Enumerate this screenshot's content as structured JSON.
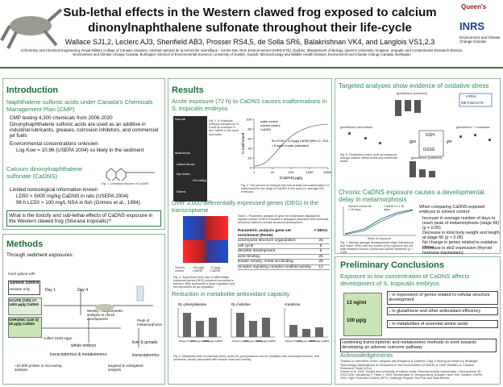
{
  "header": {
    "title_line1": "Sub-lethal effects in the Western clawed frog exposed to calcium",
    "title_line2": "dinonylnaphthalene sulfonate throughout their life-cycle",
    "authors": "Wallace SJ1,2, Leclerc AJ3, Shenfield AB3, Prosser RS4,5, de Solla SR6, Balakrishnan VK4, and Langlois VS1,2,3",
    "affiliations": "1Chemistry and Chemical Engineering, Royal Military College of Canada, Kingston; 2Institut national de la recherche scientifique - Centre Eau Terre Environnement (INRS-ETE), Québec; 3Department of Biology, Queen's University, Kingston; 4Aquatic and Contaminants Research Division, Environment and Climate Change Canada, Burlington; 5School of Environmental Sciences, University of Guelph, Guelph; 6Ecotoxicology and Wildlife Health Division, Environment and Climate Change Canada, Burlington",
    "logo1": "Queen's",
    "logo2": "INRS",
    "logo3": "Environment and Climate Change Canada"
  },
  "intro": {
    "heading": "Introduction",
    "sub1": "Naphthalene sulfonic acids under Canada's Chemicals Management Plan (CMP)",
    "b1": "CMP testing 4,300 chemicals from 2006-2020",
    "b2": "Dinonylnaphthalene sulfonic acids are used as an additive in industrial lubricants, greases, corrosion inhibitors, and commercial jet fuels",
    "b3": "Environmental concentrations unknown",
    "b3a": "Log Kow = 10.96 (USEPA 2004) so likely in the sediment",
    "sub2": "Calcium dinonylnaphthalene sulfonate (CaDNS)",
    "fig": "Fig. 1. Chemical structure of CaDNS",
    "b4": "Limited toxicological information known",
    "b4a": "LD50 > 5000 mg/kg CaDNS in rats (USEPA 2004)",
    "b4b": "96 h LC50 > 100 mg/L NSA in fish (Grimes et al., 1994)",
    "question": "What is the toxicity and sub-lethal effects of CaDNS exposure in the Western clawed frog (Silurana tropicalis)?"
  },
  "methods": {
    "heading": "Methods",
    "sub": "Through sediment exposures:",
    "spiked": "hand spiked with",
    "solvent": "Solvent control",
    "hexane": "Hexane only",
    "acute": "ACUTE (72h) 17-1400 µg/g CaDNS",
    "chronic": "CHRONIC (140 d) 25 µg/g CaDNS",
    "day1": "Day 1",
    "day4": "Day 4",
    "weekly": "Weekly: morphometric analysis to check development",
    "peak": "Peak of metamorphosis",
    "eggs": "collect 2100 eggs",
    "embryo": "whole embryo",
    "liver": "liver & gonads",
    "tm": "transcriptomics & metabolomics",
    "t": "transcriptomics",
    "probes": "~22,000 probes in microarray analysis",
    "targeted": "targeted & untargeted analysis"
  },
  "results": {
    "heading": "Results",
    "sub1": "Acute exposure (72 h) to CaDNS causes malformations in S. tropicalis embryos",
    "normal": "Normal",
    "malformed": "Malformed",
    "flexure": "Lateral flexure",
    "eye": "Eye lesion",
    "gut": "Gut coiling",
    "edema": "Edema",
    "fig1": "Fig. 1. S. tropicalis embryos sampled at 72 h and an example of the CaDNS in the sand and water.",
    "ylabel": "% malformed",
    "xlabel": "[CaDNS] µg/g",
    "leg1": "water control",
    "leg2": "solvent control",
    "leg3": "CaDNS",
    "ec50": "96 h EC50 = 24.8 µg/g CaDNS (95% CI = 20.5 – 30.0)",
    "water": "> 8 mg/ml in water (estimated)",
    "yticks": [
      0,
      20,
      40,
      60,
      80,
      100
    ],
    "xticks": [
      1,
      10,
      100,
      1000,
      10000
    ],
    "fig2": "Fig. 2. The percent of embryos that had at least one malformation (% malformed) for the range of CaDNS in the sand (n= average 400 embryos).",
    "sub2": "Over 3,600 differentially expressed genes (DEG) in the transcriptome",
    "hm1": "Solvent control",
    "hm2": "100 µg/g CaDNS",
    "hm3": "17 µg/g CaDNS",
    "fig4": "Fig. 4. Supervised heat map of differentially expressed genes (DEG) clustered according to function. Blue represents a down-regulation and red represents an up-regulation.",
    "table_caption": "Table 1. Parametric analysis of gene set enrichment displays the highest number of DEG included in biological processes and molecular functions related to cellular structural development.",
    "table": {
      "header": [
        "Parametric analysis gene set enrichment (PAGE)",
        "# DEGs"
      ],
      "rows": [
        [
          "actomyosin structure organization",
          "25"
        ],
        [
          "cell cycle",
          "6"
        ],
        [
          "dendrite development",
          "6"
        ],
        [
          "actin binding",
          "25"
        ],
        [
          "kinase activity; metal ion binding",
          "25"
        ],
        [
          "receptor signaling complex scaffold activity",
          "12"
        ]
      ]
    },
    "sub3": "Reduction in metabolite antioxidant capacity",
    "m1": "DL-phenylalanine",
    "m2": "DL-histidine",
    "m3": "creatinine",
    "mx": [
      "Solvent Control",
      "100 µg/g CaDNS",
      "1400 µg/g CaDNS"
    ],
    "fig3": "Fig. 3. Metabolite level of essential amino acids (DL-phenylalanine and DL-histidine) with antioxidant function, and creatinine, usually associated with muscle mass and mobility."
  },
  "targeted": {
    "heading": "Targeted analyses show evidence of oxidative stress",
    "g1": "glutathione (reduced)",
    "g2": "glutathione peroxidase",
    "g3": "glutathione + reductase",
    "g4": "glutathione (oxidized)",
    "gsh": "GSH",
    "gssg": "GSSG",
    "gpx": "gpx",
    "gsr": "gsr",
    "mrna": "mRNA",
    "met": "METABOLITE",
    "fig6": "Fig. 6. Glutathione redox cycle as measured through relative mRNA levels and metabolite levels.",
    "sub2": "Chronic CaDNS exposure causes a developmental delay in metamorphosis",
    "sc": "Solvent control 86 ± 18 days",
    "cd": "CaDNS 91 ± 15 days",
    "week": "Week of exposure",
    "fig7": "Fig. 7. Weekly average developmental stage (Nieuwkoop and Faber 1994) over the course of the exposure did not differ between solvent control and CaDNS treatment (p > 0.05).",
    "lead": "When comparing CaDNS-exposed embryos to solvent control:",
    "c1": "Increase in average number of days to reach peak of metamorphosis (stage 66) (p = 0.05)",
    "c2": "Decrease in total body weight and length at stage 66 (p < 0.05)",
    "c3": "No change in genes related to oxidative stress",
    "c4": "Decrease in dio2 expression (thyroid hormone inactivation)"
  },
  "conclusions": {
    "heading": "Preliminary Conclusions",
    "sub": "Exposure to low concentration of CaDNS affects development of S. tropicalis embryos",
    "dose1": "13 ng/ml",
    "dose2": "100 µg/g",
    "e1": "↑ in expression of genes related to cellular structure development",
    "e2": "↓ in glutathione and other antioxidant efficiency",
    "e3": "↓ in metabolites of essential amino acids",
    "combine": "combining transcriptomic and metabolomic methods to work towards developing an adverse outcome pathway",
    "ack_heading": "Acknowledgements",
    "ack": "Thanks to members of the Langlois lab (Kingston & Québec City). Funding provided by Strategic Technology Applications of Genomics in the Environment (STAGE) & CMP (Health) & Canada Research Chair (VSL)",
    "refs": "Grimes et al. 1994. Toxicity and ecotoxicity of sulfonic acids. Structure-activity relationships. Chemosphere 28: 2203-2206. Nieuwkoop P, Faber J. 1994. Normal table of Xenopus laevis (Daudin). New York: Garland. USEPA 2004. High Production Volume (HPV) Challenge Program Test Plan and Data Review."
  }
}
